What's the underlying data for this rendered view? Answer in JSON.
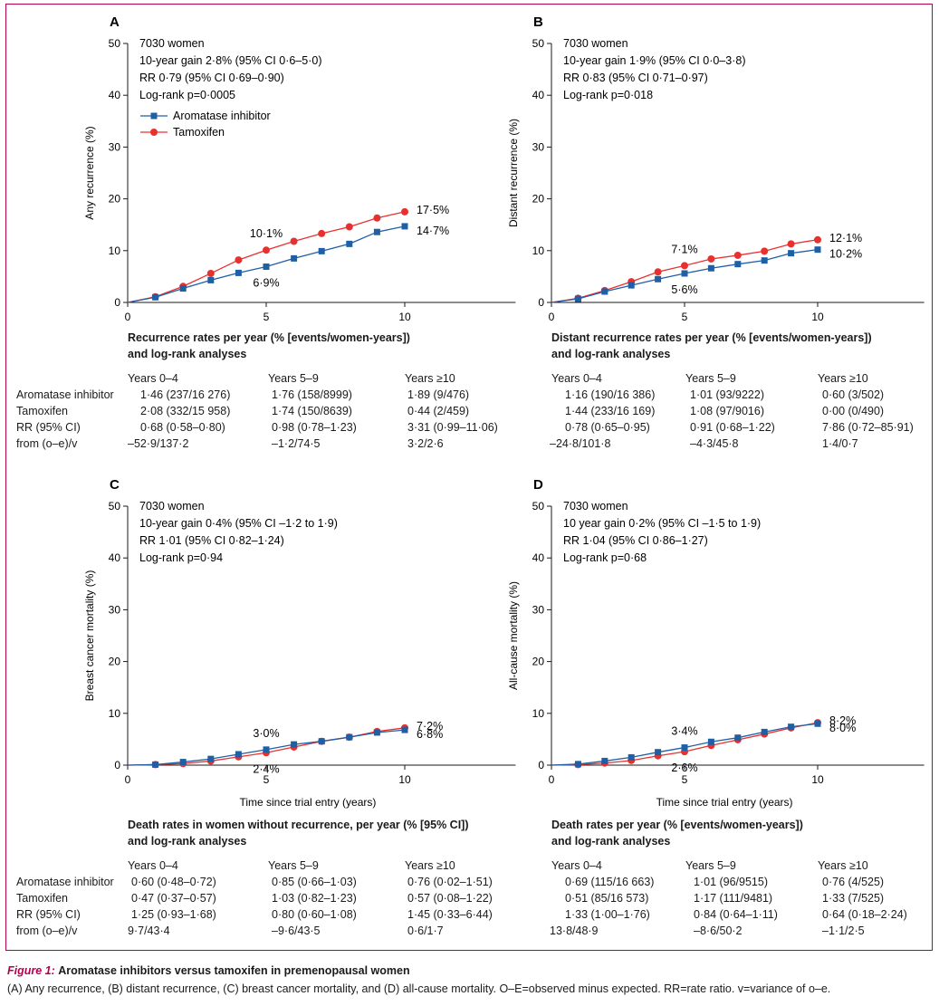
{
  "colors": {
    "ai": "#1f5fa6",
    "tam": "#e8312f",
    "frame": "#b5004f",
    "axis": "#1a1a1a"
  },
  "row_labels": [
    "Aromatase inhibitor",
    "Tamoxifen",
    "RR (95% CI)",
    "from (o–e)/v"
  ],
  "panels": [
    {
      "letter": "A",
      "ylabel": "Any recurrence (%)",
      "xlabel": "",
      "info": [
        "7030 women",
        "10-year gain 2·8% (95% CI 0·6–5·0)",
        "RR 0·79 (95% CI 0·69–0·90)",
        "Log-rank p=0·0005"
      ],
      "legend": [
        "Aromatase inhibitor",
        "Tamoxifen"
      ],
      "table_title": [
        "Recurrence rates per year (% [events/women-years])",
        "and log-rank analyses"
      ],
      "col_heads": [
        "Years 0–4",
        "Years 5–9",
        "Years ≥10"
      ],
      "rows": [
        [
          "1·46 (237/16 276)",
          "1·76 (158/8999)",
          "1·89 (9/476)"
        ],
        [
          "2·08 (332/15 958)",
          "1·74 (150/8639)",
          "0·44 (2/459)"
        ],
        [
          "0·68 (0·58–0·80)",
          "0·98 (0·78–1·23)",
          "3·31 (0·99–11·06)"
        ],
        [
          "–52·9/137·2",
          "–1·2/74·5",
          "3·2/2·6"
        ]
      ]
    },
    {
      "letter": "B",
      "ylabel": "Distant recurrence (%)",
      "xlabel": "",
      "info": [
        "7030 women",
        "10-year gain 1·9% (95% CI 0·0–3·8)",
        "RR 0·83 (95% CI 0·71–0·97)",
        "Log-rank p=0·018"
      ],
      "legend": [],
      "table_title": [
        "Distant recurrence rates per year (% [events/women-years])",
        "and log-rank analyses"
      ],
      "col_heads": [
        "Years 0–4",
        "Years 5–9",
        "Years ≥10"
      ],
      "rows": [
        [
          "1·16 (190/16 386)",
          "1·01 (93/9222)",
          "0·60 (3/502)"
        ],
        [
          "1·44 (233/16 169)",
          "1·08 (97/9016)",
          "0·00 (0/490)"
        ],
        [
          "0·78 (0·65–0·95)",
          "0·91 (0·68–1·22)",
          "7·86 (0·72–85·91)"
        ],
        [
          "–24·8/101·8",
          "–4·3/45·8",
          "1·4/0·7"
        ]
      ]
    },
    {
      "letter": "C",
      "ylabel": "Breast cancer mortality (%)",
      "xlabel": "Time since trial entry (years)",
      "info": [
        "7030 women",
        "10-year gain 0·4% (95% CI –1·2 to 1·9)",
        "RR 1·01 (95% CI 0·82–1·24)",
        "Log-rank p=0·94"
      ],
      "legend": [],
      "table_title": [
        "Death rates in women without recurrence, per year (% [95% CI])",
        "and log-rank analyses"
      ],
      "col_heads": [
        "Years 0–4",
        "Years 5–9",
        "Years ≥10"
      ],
      "rows": [
        [
          "0·60 (0·48–0·72)",
          "0·85 (0·66–1·03)",
          "0·76 (0·02–1·51)"
        ],
        [
          "0·47 (0·37–0·57)",
          "1·03 (0·82–1·23)",
          "0·57 (0·08–1·22)"
        ],
        [
          "1·25 (0·93–1·68)",
          "0·80 (0·60–1·08)",
          "1·45 (0·33–6·44)"
        ],
        [
          "9·7/43·4",
          "–9·6/43·5",
          "0·6/1·7"
        ]
      ]
    },
    {
      "letter": "D",
      "ylabel": "All-cause mortality (%)",
      "xlabel": "Time since trial entry (years)",
      "info": [
        "7030 women",
        "10 year gain 0·2% (95% CI –1·5 to 1·9)",
        "RR 1·04 (95% CI 0·86–1·27)",
        "Log-rank p=0·68"
      ],
      "legend": [],
      "table_title": [
        "Death rates per year (% [events/women-years])",
        "and log-rank analyses"
      ],
      "col_heads": [
        "Years 0–4",
        "Years 5–9",
        "Years ≥10"
      ],
      "rows": [
        [
          "0·69 (115/16 663)",
          "1·01 (96/9515)",
          "0·76 (4/525)"
        ],
        [
          "0·51 (85/16 573)",
          "1·17 (111/9481)",
          "1·33 (7/525)"
        ],
        [
          "1·33 (1·00–1·76)",
          "0·84 (0·64–1·11)",
          "0·64 (0·18–2·24)"
        ],
        [
          "13·8/48·9",
          "–8·6/50·2",
          "–1·1/2·5"
        ]
      ]
    }
  ],
  "chart_data": [
    {
      "type": "line",
      "panel": "A",
      "xlim": [
        0,
        14
      ],
      "ylim": [
        0,
        50
      ],
      "xticks": [
        0,
        5,
        10
      ],
      "yticks": [
        0,
        10,
        20,
        30,
        40,
        50
      ],
      "x": [
        0,
        1,
        2,
        3,
        4,
        5,
        6,
        7,
        8,
        9,
        10
      ],
      "series": [
        {
          "name": "Aromatase inhibitor",
          "values": [
            0,
            1.0,
            2.7,
            4.3,
            5.7,
            6.9,
            8.5,
            9.9,
            11.3,
            13.6,
            14.7
          ]
        },
        {
          "name": "Tamoxifen",
          "values": [
            0,
            1.1,
            3.1,
            5.6,
            8.2,
            10.1,
            11.8,
            13.3,
            14.6,
            16.3,
            17.5
          ]
        }
      ],
      "annotations": [
        {
          "x": 5,
          "series": "Tamoxifen",
          "text": "10·1%"
        },
        {
          "x": 5,
          "series": "Aromatase inhibitor",
          "text": "6·9%"
        },
        {
          "x": 10,
          "series": "Tamoxifen",
          "text": "17·5%"
        },
        {
          "x": 10,
          "series": "Aromatase inhibitor",
          "text": "14·7%"
        }
      ]
    },
    {
      "type": "line",
      "panel": "B",
      "xlim": [
        0,
        14
      ],
      "ylim": [
        0,
        50
      ],
      "xticks": [
        0,
        5,
        10
      ],
      "yticks": [
        0,
        10,
        20,
        30,
        40,
        50
      ],
      "x": [
        0,
        1,
        2,
        3,
        4,
        5,
        6,
        7,
        8,
        9,
        10
      ],
      "series": [
        {
          "name": "Aromatase inhibitor",
          "values": [
            0,
            0.7,
            2.1,
            3.3,
            4.5,
            5.6,
            6.6,
            7.4,
            8.1,
            9.5,
            10.2
          ]
        },
        {
          "name": "Tamoxifen",
          "values": [
            0,
            0.8,
            2.3,
            4.0,
            5.9,
            7.1,
            8.4,
            9.1,
            9.9,
            11.3,
            12.1
          ]
        }
      ],
      "annotations": [
        {
          "x": 5,
          "series": "Tamoxifen",
          "text": "7·1%"
        },
        {
          "x": 5,
          "series": "Aromatase inhibitor",
          "text": "5·6%"
        },
        {
          "x": 10,
          "series": "Tamoxifen",
          "text": "12·1%"
        },
        {
          "x": 10,
          "series": "Aromatase inhibitor",
          "text": "10·2%"
        }
      ]
    },
    {
      "type": "line",
      "panel": "C",
      "xlim": [
        0,
        14
      ],
      "ylim": [
        0,
        50
      ],
      "xticks": [
        0,
        5,
        10
      ],
      "yticks": [
        0,
        10,
        20,
        30,
        40,
        50
      ],
      "x": [
        0,
        1,
        2,
        3,
        4,
        5,
        6,
        7,
        8,
        9,
        10
      ],
      "series": [
        {
          "name": "Aromatase inhibitor",
          "values": [
            0,
            0.1,
            0.6,
            1.2,
            2.1,
            3.0,
            4.0,
            4.6,
            5.4,
            6.3,
            6.8
          ]
        },
        {
          "name": "Tamoxifen",
          "values": [
            0,
            0.1,
            0.3,
            0.8,
            1.6,
            2.4,
            3.5,
            4.6,
            5.4,
            6.5,
            7.2
          ]
        }
      ],
      "annotations": [
        {
          "x": 5,
          "series": "Aromatase inhibitor",
          "text": "3·0%"
        },
        {
          "x": 5,
          "series": "Tamoxifen",
          "text": "2·4%"
        },
        {
          "x": 10,
          "series": "Tamoxifen",
          "text": "7·2%"
        },
        {
          "x": 10,
          "series": "Aromatase inhibitor",
          "text": "6·8%"
        }
      ]
    },
    {
      "type": "line",
      "panel": "D",
      "xlim": [
        0,
        14
      ],
      "ylim": [
        0,
        50
      ],
      "xticks": [
        0,
        5,
        10
      ],
      "yticks": [
        0,
        10,
        20,
        30,
        40,
        50
      ],
      "x": [
        0,
        1,
        2,
        3,
        4,
        5,
        6,
        7,
        8,
        9,
        10
      ],
      "series": [
        {
          "name": "Aromatase inhibitor",
          "values": [
            0,
            0.2,
            0.8,
            1.5,
            2.5,
            3.4,
            4.5,
            5.3,
            6.4,
            7.4,
            8.0
          ]
        },
        {
          "name": "Tamoxifen",
          "values": [
            0,
            0.1,
            0.4,
            0.9,
            1.8,
            2.6,
            3.8,
            4.9,
            6.0,
            7.2,
            8.2
          ]
        }
      ],
      "annotations": [
        {
          "x": 5,
          "series": "Aromatase inhibitor",
          "text": "3·4%"
        },
        {
          "x": 5,
          "series": "Tamoxifen",
          "text": "2·6%"
        },
        {
          "x": 10,
          "series": "Tamoxifen",
          "text": "8·2%"
        },
        {
          "x": 10,
          "series": "Aromatase inhibitor",
          "text": "8·0%"
        }
      ]
    }
  ],
  "caption": {
    "figure_label": "Figure 1:",
    "title": "Aromatase inhibitors versus tamoxifen in premenopausal women",
    "text": "(A) Any recurrence, (B) distant recurrence, (C) breast cancer mortality, and (D) all-cause mortality. O–E=observed minus expected. RR=rate ratio. v=variance of o–e."
  }
}
